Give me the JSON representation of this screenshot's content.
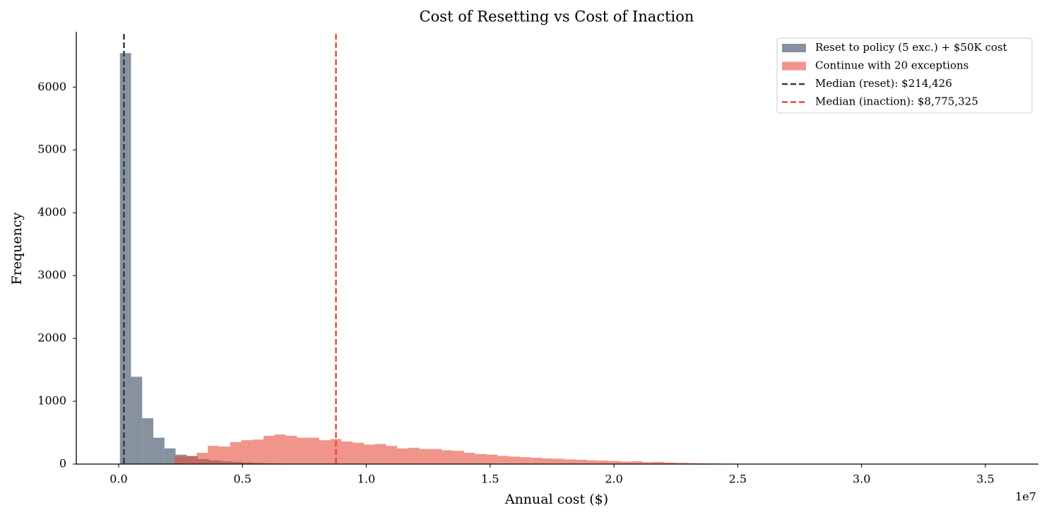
{
  "chart_data": {
    "type": "histogram",
    "title": "Cost of Resetting vs Cost of Inaction",
    "x_label": "Annual cost ($)",
    "y_label": "Frequency",
    "x_offset_label": "1e7",
    "xlim": [
      -1710000,
      37140000
    ],
    "ylim": [
      0,
      6880
    ],
    "xticks": [
      {
        "value": 0,
        "label": "0.0"
      },
      {
        "value": 5000000,
        "label": "0.5"
      },
      {
        "value": 10000000,
        "label": "1.0"
      },
      {
        "value": 15000000,
        "label": "1.5"
      },
      {
        "value": 20000000,
        "label": "2.0"
      },
      {
        "value": 25000000,
        "label": "2.5"
      },
      {
        "value": 30000000,
        "label": "3.0"
      },
      {
        "value": 35000000,
        "label": "3.5"
      }
    ],
    "yticks": [
      0,
      1000,
      2000,
      3000,
      4000,
      5000,
      6000
    ],
    "legend": "upper right",
    "series": [
      {
        "name": "Reset to policy (5 exc.) + $50K cost",
        "color": "#5d6d7e",
        "opacity": 0.75,
        "bins": [
          50000,
          500000,
          950000,
          1400000,
          1850000,
          2300000,
          2750000,
          3200000,
          3650000,
          4100000,
          4550000,
          5000000,
          5450000,
          5900000,
          6350000,
          6800000,
          7250000,
          7700000,
          8150000,
          8600000,
          9050000
        ],
        "values": [
          6540,
          1390,
          730,
          420,
          250,
          150,
          125,
          80,
          60,
          45,
          35,
          25,
          18,
          12,
          8,
          5,
          3,
          2,
          1,
          1
        ]
      },
      {
        "name": "Continue with 20 exceptions",
        "color": "#e74c3c",
        "opacity": 0.6,
        "bins": [
          1800000,
          2250000,
          2700000,
          3150000,
          3600000,
          4050000,
          4500000,
          4950000,
          5400000,
          5850000,
          6300000,
          6750000,
          7200000,
          7650000,
          8100000,
          8550000,
          9000000,
          9450000,
          9900000,
          10350000,
          10800000,
          11250000,
          11700000,
          12150000,
          12600000,
          13050000,
          13500000,
          13950000,
          14400000,
          14850000,
          15300000,
          15750000,
          16200000,
          16650000,
          17100000,
          17550000,
          18000000,
          18450000,
          18900000,
          19350000,
          19800000,
          20250000,
          20700000,
          21150000,
          21600000,
          22050000,
          22500000,
          22950000,
          23400000,
          23850000,
          24300000,
          24750000
        ],
        "values": [
          10,
          120,
          130,
          180,
          290,
          280,
          350,
          380,
          390,
          450,
          470,
          450,
          420,
          420,
          380,
          400,
          360,
          340,
          310,
          320,
          290,
          250,
          260,
          240,
          240,
          220,
          210,
          180,
          160,
          150,
          130,
          120,
          110,
          100,
          90,
          85,
          75,
          70,
          60,
          55,
          50,
          40,
          45,
          30,
          35,
          25,
          20,
          15,
          12,
          10,
          8
        ]
      }
    ],
    "medians": [
      {
        "name": "Median (reset): $214,426",
        "value": 214426,
        "color": "#2c3e50"
      },
      {
        "name": "Median (inaction): $8,775,325",
        "value": 8775325,
        "color": "#e74c3c"
      }
    ]
  }
}
